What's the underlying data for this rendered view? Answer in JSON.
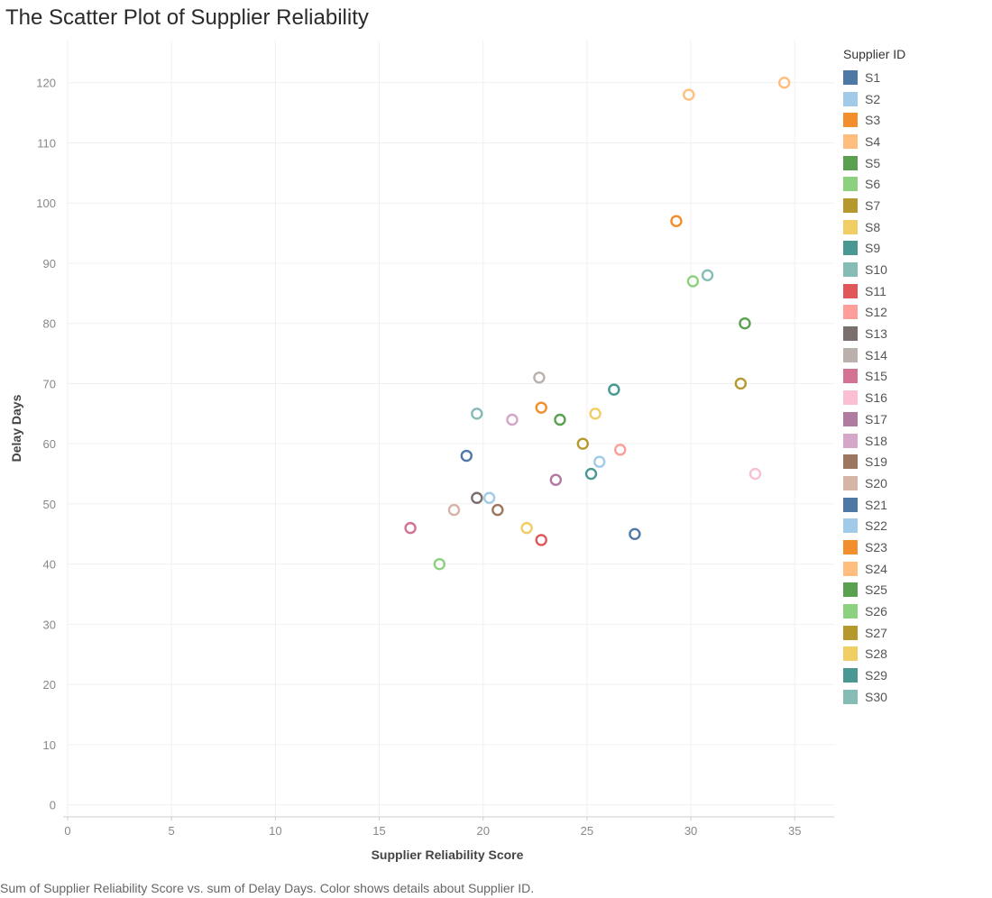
{
  "title": "The Scatter Plot of Supplier Reliability",
  "caption": "Sum of Supplier Reliability Score vs. sum of Delay Days.  Color shows details about Supplier ID.",
  "legend": {
    "title": "Supplier ID"
  },
  "chart_data": {
    "type": "scatter",
    "title": "The Scatter Plot of Supplier Reliability",
    "xlabel": "Supplier Reliability Score",
    "ylabel": "Delay Days",
    "xlim": [
      0,
      36.5
    ],
    "ylim": [
      -2,
      127
    ],
    "xticks": [
      0,
      5,
      10,
      15,
      20,
      25,
      30,
      35
    ],
    "yticks": [
      0,
      10,
      20,
      30,
      40,
      50,
      60,
      70,
      80,
      90,
      100,
      110,
      120
    ],
    "grid": true,
    "legend_position": "right",
    "marker": "open-circle",
    "series": [
      {
        "name": "S1",
        "color": "#4e79a7",
        "x": 19.2,
        "y": 58
      },
      {
        "name": "S2",
        "color": "#a0cbe8",
        "x": 25.6,
        "y": 57
      },
      {
        "name": "S3",
        "color": "#f28e2b",
        "x": 22.8,
        "y": 66
      },
      {
        "name": "S4",
        "color": "#ffbe7d",
        "x": 34.5,
        "y": 120
      },
      {
        "name": "S5",
        "color": "#59a14f",
        "x": 23.7,
        "y": 64
      },
      {
        "name": "S6",
        "color": "#8cd17d",
        "x": 17.9,
        "y": 40
      },
      {
        "name": "S7",
        "color": "#b6992d",
        "x": 24.8,
        "y": 60
      },
      {
        "name": "S8",
        "color": "#f1ce63",
        "x": 22.1,
        "y": 46
      },
      {
        "name": "S9",
        "color": "#499894",
        "x": 25.2,
        "y": 55
      },
      {
        "name": "S10",
        "color": "#86bcb6",
        "x": 19.7,
        "y": 65
      },
      {
        "name": "S11",
        "color": "#e15759",
        "x": 22.8,
        "y": 44
      },
      {
        "name": "S12",
        "color": "#ff9d9a",
        "x": 26.6,
        "y": 59
      },
      {
        "name": "S13",
        "color": "#79706e",
        "x": 19.7,
        "y": 51
      },
      {
        "name": "S14",
        "color": "#bab0ac",
        "x": 22.7,
        "y": 71
      },
      {
        "name": "S15",
        "color": "#d37295",
        "x": 16.5,
        "y": 46
      },
      {
        "name": "S16",
        "color": "#fabfd2",
        "x": 33.1,
        "y": 55
      },
      {
        "name": "S17",
        "color": "#b07aa1",
        "x": 23.5,
        "y": 54
      },
      {
        "name": "S18",
        "color": "#d4a6c8",
        "x": 21.4,
        "y": 64
      },
      {
        "name": "S19",
        "color": "#9d7660",
        "x": 20.7,
        "y": 49
      },
      {
        "name": "S20",
        "color": "#d7b5a6",
        "x": 18.6,
        "y": 49
      },
      {
        "name": "S21",
        "color": "#4e79a7",
        "x": 27.3,
        "y": 45
      },
      {
        "name": "S22",
        "color": "#a0cbe8",
        "x": 20.3,
        "y": 51
      },
      {
        "name": "S23",
        "color": "#f28e2b",
        "x": 29.3,
        "y": 97
      },
      {
        "name": "S24",
        "color": "#ffbe7d",
        "x": 29.9,
        "y": 118
      },
      {
        "name": "S25",
        "color": "#59a14f",
        "x": 32.6,
        "y": 80
      },
      {
        "name": "S26",
        "color": "#8cd17d",
        "x": 30.1,
        "y": 87
      },
      {
        "name": "S27",
        "color": "#b6992d",
        "x": 32.4,
        "y": 70
      },
      {
        "name": "S28",
        "color": "#f1ce63",
        "x": 25.4,
        "y": 65
      },
      {
        "name": "S29",
        "color": "#499894",
        "x": 26.3,
        "y": 69
      },
      {
        "name": "S30",
        "color": "#86bcb6",
        "x": 30.8,
        "y": 88
      }
    ]
  }
}
